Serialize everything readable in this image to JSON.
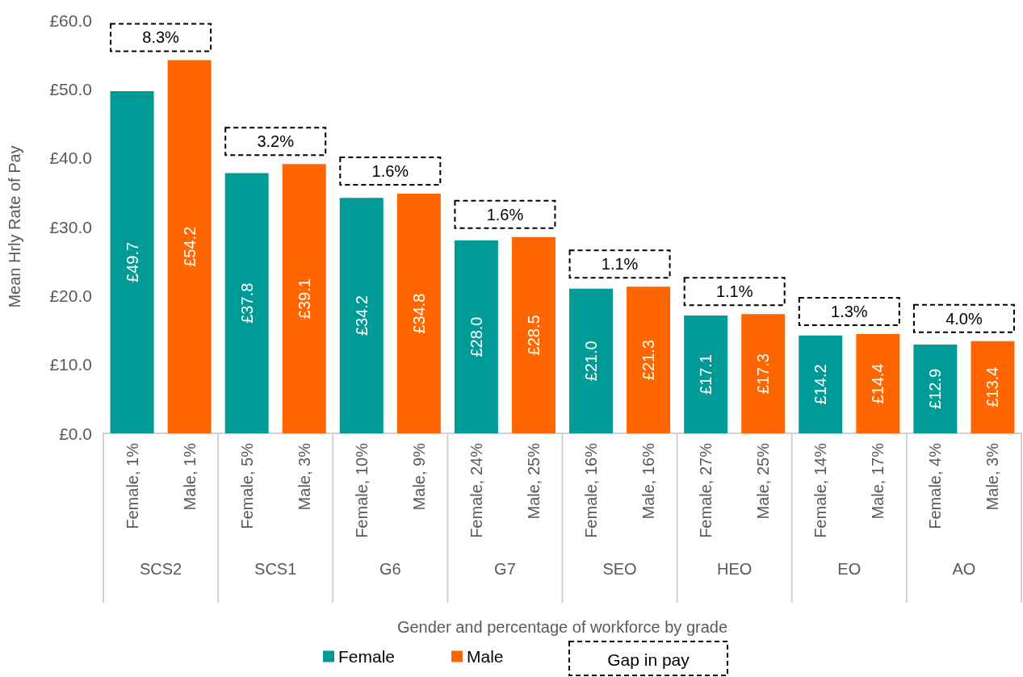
{
  "chart_data": {
    "type": "bar",
    "stacked": true,
    "xlabel": "Gender and percentage of workforce by grade",
    "ylabel": "Mean Hrly Rate of Pay",
    "categories": [
      "Female, 1%",
      "Male, 1%",
      "Female, 5%",
      "Male, 3%",
      "Female, 10%",
      "Male, 9%",
      "Female, 24%",
      "Male, 25%",
      "Female, 16%",
      "Male, 16%",
      "Female, 27%",
      "Male, 25%",
      "Female, 14%",
      "Male, 17%",
      "Female, 4%",
      "Male, 3%"
    ],
    "series": [
      {
        "name": "Female",
        "color": "#009b97",
        "values": [
          49.7,
          null,
          37.8,
          null,
          34.2,
          null,
          28.0,
          null,
          21.0,
          null,
          17.1,
          null,
          14.2,
          null,
          12.9,
          null
        ],
        "value_labels": [
          "£49.7",
          null,
          "£37.8",
          null,
          "£34.2",
          null,
          "£28.0",
          null,
          "£21.0",
          null,
          "£17.1",
          null,
          "£14.2",
          null,
          "£12.9",
          null
        ]
      },
      {
        "name": "Male",
        "color": "#ff6600",
        "values": [
          null,
          54.2,
          null,
          39.1,
          null,
          34.8,
          null,
          28.5,
          null,
          21.3,
          null,
          17.3,
          null,
          14.4,
          null,
          13.4
        ],
        "value_labels": [
          null,
          "£54.2",
          null,
          "£39.1",
          null,
          "£34.8",
          null,
          "£28.5",
          null,
          "£21.3",
          null,
          "£17.3",
          null,
          "£14.4",
          null,
          "£13.4"
        ]
      }
    ],
    "ylim": [
      0,
      60
    ],
    "yticks": [
      {
        "value": 0,
        "label": "£0.0"
      },
      {
        "value": 10,
        "label": "£10.0"
      },
      {
        "value": 20,
        "label": "£20.0"
      },
      {
        "value": 30,
        "label": "£30.0"
      },
      {
        "value": 40,
        "label": "£40.0"
      },
      {
        "value": 50,
        "label": "£50.0"
      },
      {
        "value": 60,
        "label": "£60.0"
      }
    ],
    "grid": false,
    "legend": "bottom",
    "annotations": [
      "SCS2",
      "SCS1",
      "G6",
      "G7",
      "SEO",
      "HEO",
      "EO",
      "AO",
      "8.3%",
      "3.2%",
      "1.6%",
      "1.6%",
      "1.1%",
      "1.1%",
      "1.3%",
      "4.0%",
      "Gap in pay"
    ]
  }
}
